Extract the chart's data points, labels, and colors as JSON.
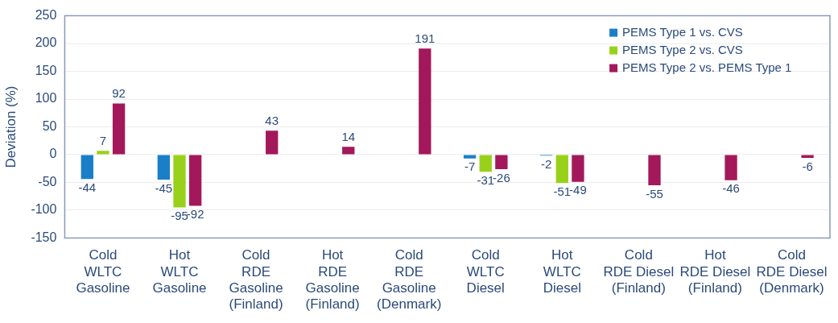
{
  "chart_data": {
    "type": "bar",
    "ylabel": "Deviation (%)",
    "categories": [
      "Cold\nWLTC\nGasoline",
      "Hot\nWLTC\nGasoline",
      "Cold\nRDE\nGasoline\n(Finland)",
      "Hot\nRDE\nGasoline\n(Finland)",
      "Cold\nRDE\nGasoline\n(Denmark)",
      "Cold\nWLTC\nDiesel",
      "Hot\nWLTC\nDiesel",
      "Cold\nRDE Diesel\n(Finland)",
      "Hot\nRDE Diesel\n(Finland)",
      "Cold\nRDE Diesel\n(Denmark)"
    ],
    "series": [
      {
        "name": "PEMS Type 1 vs. CVS",
        "color": "#1a7fc8",
        "values": [
          -44,
          -45,
          null,
          null,
          null,
          -7,
          -2,
          null,
          null,
          null
        ]
      },
      {
        "name": "PEMS Type 2 vs. CVS",
        "color": "#99d11a",
        "values": [
          7,
          -95,
          null,
          null,
          null,
          -31,
          -51,
          null,
          null,
          null
        ]
      },
      {
        "name": "PEMS Type 2 vs. PEMS Type 1",
        "color": "#a3185a",
        "values": [
          92,
          -92,
          43,
          14,
          191,
          -26,
          -49,
          -55,
          -46,
          -6
        ]
      }
    ],
    "ylim": [
      -150,
      250
    ],
    "yticks": [
      -150,
      -100,
      -50,
      0,
      50,
      100,
      150,
      200,
      250
    ],
    "grid": "y",
    "legend": "top right",
    "data_labels": true
  }
}
